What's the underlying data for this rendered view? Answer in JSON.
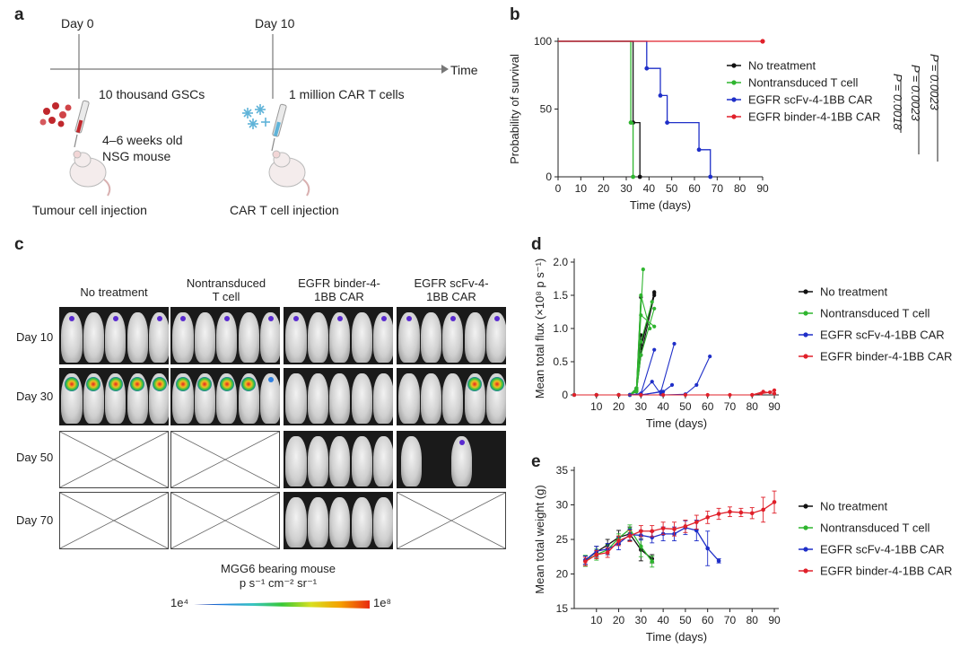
{
  "panels": {
    "a": "a",
    "b": "b",
    "c": "c",
    "d": "d",
    "e": "e"
  },
  "panel_a": {
    "day0": "Day 0",
    "day10": "Day 10",
    "time": "Time",
    "gsc": "10 thousand GSCs",
    "car": "1 million CAR T cells",
    "mouse_line1": "4–6 weeks old",
    "mouse_line2": "NSG mouse",
    "tumour_inj": "Tumour cell injection",
    "car_inj": "CAR T cell injection",
    "colors": {
      "tumour_cells": "#c0282d",
      "car_cells": "#5fb3d8",
      "syringe": "#c0282d"
    }
  },
  "panel_c": {
    "columns": [
      "No treatment",
      "Nontransduced\nT cell",
      "EGFR binder-4-\n1BB CAR",
      "EGFR scFv-4-\n1BB CAR"
    ],
    "rows": [
      "Day 10",
      "Day 30",
      "Day 50",
      "Day 70"
    ],
    "colorbar_title": "MGG6 bearing mouse",
    "colorbar_units": "p s⁻¹ cm⁻² sr⁻¹",
    "colorbar_min": "1e⁴",
    "colorbar_max": "1e⁸"
  },
  "legend_entries": {
    "no_treatment": "No treatment",
    "nontransduced": "Nontransduced T cell",
    "scfv": "EGFR scFv-4-1BB CAR",
    "binder": "EGFR binder-4-1BB CAR"
  },
  "pvalues": [
    "P = 0.0023",
    "P = 0.0023",
    "P = 0.0018"
  ],
  "chart_data": [
    {
      "id": "b",
      "type": "line",
      "xlabel": "Time (days)",
      "ylabel": "Probability of survival",
      "xlim": [
        0,
        90
      ],
      "ylim": [
        0,
        100
      ],
      "xticks": [
        0,
        10,
        20,
        30,
        40,
        50,
        60,
        70,
        80,
        90
      ],
      "yticks": [
        0,
        50,
        100
      ],
      "series": [
        {
          "name": "No treatment",
          "color": "#111111",
          "steps": [
            [
              0,
              100
            ],
            [
              33,
              100
            ],
            [
              33,
              40
            ],
            [
              36,
              40
            ],
            [
              36,
              0
            ]
          ]
        },
        {
          "name": "Nontransduced T cell",
          "color": "#2fb52f",
          "steps": [
            [
              0,
              100
            ],
            [
              32,
              100
            ],
            [
              32,
              40
            ],
            [
              33,
              40
            ],
            [
              33,
              0
            ]
          ]
        },
        {
          "name": "EGFR scFv-4-1BB CAR",
          "color": "#1f2fc8",
          "steps": [
            [
              0,
              100
            ],
            [
              39,
              100
            ],
            [
              39,
              80
            ],
            [
              45,
              80
            ],
            [
              45,
              60
            ],
            [
              48,
              60
            ],
            [
              48,
              40
            ],
            [
              62,
              40
            ],
            [
              62,
              20
            ],
            [
              67,
              20
            ],
            [
              67,
              0
            ]
          ]
        },
        {
          "name": "EGFR binder-4-1BB CAR",
          "color": "#e0202a",
          "steps": [
            [
              0,
              100
            ],
            [
              90,
              100
            ]
          ]
        }
      ]
    },
    {
      "id": "d",
      "type": "line",
      "xlabel": "Time (days)",
      "ylabel": "Mean total flux (×10⁸ p s⁻¹)",
      "xlim": [
        0,
        92
      ],
      "ylim": [
        0,
        2.0
      ],
      "xticks": [
        10,
        20,
        30,
        40,
        50,
        60,
        70,
        80,
        90
      ],
      "yticks": [
        0,
        0.5,
        1.0,
        1.5,
        2.0
      ],
      "ytick_labels": [
        "0",
        "0.5",
        "1.0",
        "1.5",
        "2.0"
      ],
      "series": [
        {
          "name": "No treatment",
          "color": "#111111",
          "lines": [
            [
              [
                0,
                0
              ],
              [
                10,
                0
              ],
              [
                20,
                0
              ],
              [
                25,
                0
              ],
              [
                28,
                0.1
              ],
              [
                30,
                1.47
              ]
            ],
            [
              [
                0,
                0
              ],
              [
                10,
                0
              ],
              [
                20,
                0
              ],
              [
                25,
                0
              ],
              [
                28,
                0.1
              ],
              [
                30,
                0.9
              ]
            ],
            [
              [
                25,
                0
              ],
              [
                28,
                0.08
              ],
              [
                30,
                0.75
              ],
              [
                36,
                1.53
              ]
            ],
            [
              [
                25,
                0
              ],
              [
                28,
                0.08
              ],
              [
                30,
                0.7
              ],
              [
                36,
                1.55
              ]
            ],
            [
              [
                25,
                0
              ],
              [
                28,
                0.05
              ],
              [
                30,
                0.6
              ],
              [
                36,
                1.5
              ]
            ]
          ]
        },
        {
          "name": "Nontransduced T cell",
          "color": "#2fb52f",
          "lines": [
            [
              [
                25,
                0
              ],
              [
                28,
                0.1
              ],
              [
                31,
                1.89
              ]
            ],
            [
              [
                25,
                0
              ],
              [
                28,
                0.1
              ],
              [
                30,
                1.5
              ],
              [
                34,
                1.0
              ]
            ],
            [
              [
                25,
                0
              ],
              [
                28,
                0.08
              ],
              [
                30,
                1.2
              ],
              [
                36,
                1.03
              ]
            ],
            [
              [
                25,
                0
              ],
              [
                28,
                0.08
              ],
              [
                30,
                0.8
              ],
              [
                35,
                1.4
              ]
            ],
            [
              [
                25,
                0
              ],
              [
                28,
                0.05
              ],
              [
                30,
                0.6
              ],
              [
                36,
                1.3
              ]
            ]
          ]
        },
        {
          "name": "EGFR scFv-4-1BB CAR",
          "color": "#1f2fc8",
          "lines": [
            [
              [
                25,
                0
              ],
              [
                30,
                0.02
              ],
              [
                36,
                0.68
              ]
            ],
            [
              [
                25,
                0
              ],
              [
                30,
                0.02
              ],
              [
                35,
                0.2
              ],
              [
                39,
                0.01
              ]
            ],
            [
              [
                30,
                0
              ],
              [
                39,
                0.05
              ],
              [
                45,
                0.77
              ]
            ],
            [
              [
                30,
                0
              ],
              [
                40,
                0.05
              ],
              [
                44,
                0.15
              ]
            ],
            [
              [
                40,
                0
              ],
              [
                50,
                0.01
              ],
              [
                55,
                0.15
              ],
              [
                61,
                0.58
              ]
            ]
          ]
        },
        {
          "name": "EGFR binder-4-1BB CAR",
          "color": "#e0202a",
          "lines": [
            [
              [
                0,
                0
              ],
              [
                10,
                0
              ],
              [
                20,
                0
              ],
              [
                30,
                0
              ],
              [
                40,
                0
              ],
              [
                50,
                0
              ],
              [
                60,
                0
              ],
              [
                70,
                0
              ],
              [
                80,
                0
              ],
              [
                84,
                0.02
              ],
              [
                88,
                0.04
              ],
              [
                90,
                0.07
              ]
            ],
            [
              [
                80,
                0
              ],
              [
                85,
                0.05
              ],
              [
                90,
                0.02
              ]
            ]
          ]
        }
      ]
    },
    {
      "id": "e",
      "type": "line",
      "xlabel": "Time (days)",
      "ylabel": "Mean total weight (g)",
      "xlim": [
        0,
        92
      ],
      "ylim": [
        15,
        35
      ],
      "xticks": [
        10,
        20,
        30,
        40,
        50,
        60,
        70,
        80,
        90
      ],
      "yticks": [
        15,
        20,
        25,
        30,
        35
      ],
      "series": [
        {
          "name": "No treatment",
          "color": "#111111",
          "x": [
            5,
            10,
            15,
            20,
            25,
            30,
            35
          ],
          "y": [
            22,
            23.2,
            24.2,
            25.3,
            25.8,
            23.5,
            22.2
          ],
          "err": [
            0.6,
            0.8,
            0.8,
            1,
            1,
            1.6,
            0.6
          ]
        },
        {
          "name": "Nontransduced T cell",
          "color": "#2fb52f",
          "x": [
            5,
            10,
            15,
            20,
            25,
            30,
            35
          ],
          "y": [
            21.9,
            22.8,
            23.5,
            25.2,
            26.5,
            24,
            21.8
          ],
          "err": [
            0.8,
            0.8,
            0.7,
            0.6,
            0.6,
            1.5,
            0.8
          ]
        },
        {
          "name": "EGFR scFv-4-1BB CAR",
          "color": "#1f2fc8",
          "x": [
            5,
            10,
            15,
            20,
            25,
            30,
            35,
            40,
            45,
            50,
            55,
            60,
            65
          ],
          "y": [
            22,
            23.3,
            23.6,
            24.4,
            25.7,
            25.6,
            25.3,
            25.8,
            25.8,
            26.7,
            26.3,
            23.7,
            21.9
          ],
          "err": [
            0.6,
            0.7,
            0.8,
            0.9,
            0.8,
            0.7,
            0.8,
            1,
            1,
            1,
            1.5,
            2.5,
            0.3
          ]
        },
        {
          "name": "EGFR binder-4-1BB CAR",
          "color": "#e0202a",
          "x": [
            5,
            10,
            15,
            20,
            25,
            30,
            35,
            40,
            45,
            50,
            55,
            60,
            65,
            70,
            75,
            80,
            85,
            90
          ],
          "y": [
            21.8,
            22.8,
            23.1,
            24.8,
            25.5,
            26.2,
            26.2,
            26.6,
            26.5,
            26.9,
            27.5,
            28.2,
            28.7,
            29,
            28.9,
            28.8,
            29.3,
            30.4
          ],
          "err": [
            0.6,
            0.6,
            0.7,
            0.7,
            0.8,
            0.8,
            0.8,
            0.9,
            1,
            0.9,
            1,
            0.9,
            0.8,
            0.7,
            0.6,
            0.8,
            1.8,
            1.6
          ]
        }
      ]
    }
  ]
}
